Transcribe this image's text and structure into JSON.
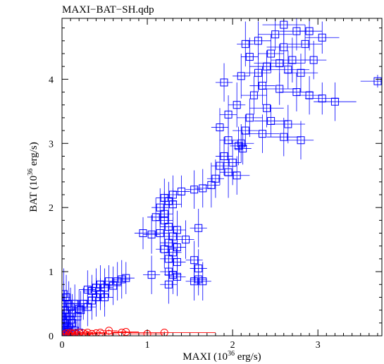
{
  "chart_data": {
    "type": "scatter",
    "title": "MAXI−BAT−SH.qdp",
    "xlabel": "MAXI (10^36 erg/s)",
    "ylabel": "BAT (10^36 erg/s)",
    "xlim": [
      0,
      3.75
    ],
    "ylim": [
      0,
      4.95
    ],
    "x_ticks": [
      0,
      1,
      2,
      3
    ],
    "y_ticks": [
      0,
      1,
      2,
      3,
      4
    ],
    "grid": false,
    "series": [
      {
        "marker": "square",
        "color": "#0000ff",
        "points": [
          [
            2.6,
            4.85,
            0.25,
            0.3
          ],
          [
            2.75,
            4.75,
            0.2,
            0.3
          ],
          [
            2.5,
            4.7,
            0.2,
            0.25
          ],
          [
            2.3,
            4.6,
            0.15,
            0.3
          ],
          [
            2.15,
            4.55,
            0.1,
            0.35
          ],
          [
            2.6,
            4.5,
            0.2,
            0.3
          ],
          [
            2.9,
            4.75,
            0.15,
            0.3
          ],
          [
            3.05,
            4.65,
            0.2,
            0.25
          ],
          [
            2.85,
            4.55,
            0.2,
            0.3
          ],
          [
            2.45,
            4.4,
            0.15,
            0.3
          ],
          [
            2.2,
            4.35,
            0.1,
            0.3
          ],
          [
            2.7,
            4.3,
            0.25,
            0.35
          ],
          [
            2.55,
            4.25,
            0.3,
            0.3
          ],
          [
            2.4,
            4.2,
            0.2,
            0.25
          ],
          [
            2.65,
            4.15,
            0.25,
            0.3
          ],
          [
            2.3,
            4.1,
            0.15,
            0.3
          ],
          [
            2.1,
            4.05,
            0.1,
            0.35
          ],
          [
            2.8,
            4.1,
            0.2,
            0.3
          ],
          [
            2.95,
            4.3,
            0.15,
            0.3
          ],
          [
            3.7,
            3.97,
            0.2,
            0.1
          ],
          [
            1.9,
            3.95,
            0.1,
            0.3
          ],
          [
            2.35,
            3.9,
            0.15,
            0.3
          ],
          [
            2.55,
            3.85,
            0.2,
            0.25
          ],
          [
            2.75,
            3.8,
            0.2,
            0.3
          ],
          [
            2.9,
            3.75,
            0.15,
            0.3
          ],
          [
            3.05,
            3.7,
            0.2,
            0.25
          ],
          [
            3.2,
            3.65,
            0.25,
            0.3
          ],
          [
            2.25,
            3.75,
            0.15,
            0.3
          ],
          [
            2.05,
            3.6,
            0.1,
            0.35
          ],
          [
            2.4,
            3.55,
            0.2,
            0.3
          ],
          [
            1.95,
            3.45,
            0.1,
            0.3
          ],
          [
            2.2,
            3.4,
            0.15,
            0.3
          ],
          [
            2.45,
            3.35,
            0.2,
            0.25
          ],
          [
            2.65,
            3.3,
            0.2,
            0.3
          ],
          [
            1.85,
            3.25,
            0.1,
            0.3
          ],
          [
            2.15,
            3.2,
            0.15,
            0.25
          ],
          [
            2.35,
            3.15,
            0.2,
            0.3
          ],
          [
            2.6,
            3.1,
            0.2,
            0.3
          ],
          [
            2.8,
            3.05,
            0.15,
            0.3
          ],
          [
            1.95,
            3.05,
            0.1,
            0.35
          ],
          [
            2.1,
            3.0,
            0.15,
            0.3
          ],
          [
            2.07,
            2.96,
            0.1,
            0.3
          ],
          [
            2.12,
            2.92,
            0.1,
            0.25
          ],
          [
            1.9,
            2.8,
            0.1,
            0.3
          ],
          [
            2.0,
            2.7,
            0.1,
            0.35
          ],
          [
            1.85,
            2.65,
            0.1,
            0.3
          ],
          [
            1.95,
            2.55,
            0.1,
            0.4
          ],
          [
            2.05,
            2.5,
            0.15,
            0.3
          ],
          [
            1.8,
            2.45,
            0.1,
            0.3
          ],
          [
            1.75,
            2.35,
            0.1,
            0.35
          ],
          [
            1.65,
            2.3,
            0.1,
            0.3
          ],
          [
            1.55,
            2.28,
            0.1,
            0.3
          ],
          [
            1.4,
            2.25,
            0.1,
            0.25
          ],
          [
            1.3,
            2.2,
            0.1,
            0.3
          ],
          [
            1.2,
            2.15,
            0.1,
            0.3
          ],
          [
            1.25,
            2.1,
            0.1,
            0.3
          ],
          [
            1.3,
            2.05,
            0.1,
            0.25
          ],
          [
            1.15,
            2.0,
            0.1,
            0.3
          ],
          [
            1.2,
            1.9,
            0.1,
            0.35
          ],
          [
            1.1,
            1.85,
            0.1,
            0.3
          ],
          [
            1.2,
            1.8,
            0.1,
            0.3
          ],
          [
            1.25,
            1.7,
            0.1,
            0.25
          ],
          [
            1.35,
            1.65,
            0.1,
            0.3
          ],
          [
            1.6,
            1.68,
            0.1,
            0.3
          ],
          [
            1.15,
            1.6,
            0.1,
            0.3
          ],
          [
            0.95,
            1.6,
            0.1,
            0.25
          ],
          [
            1.05,
            1.58,
            0.1,
            0.3
          ],
          [
            1.3,
            1.55,
            0.1,
            0.3
          ],
          [
            1.45,
            1.5,
            0.1,
            0.3
          ],
          [
            1.25,
            1.45,
            0.1,
            0.25
          ],
          [
            1.35,
            1.38,
            0.1,
            0.3
          ],
          [
            1.2,
            1.35,
            0.1,
            0.3
          ],
          [
            1.3,
            1.3,
            0.1,
            0.3
          ],
          [
            1.25,
            1.2,
            0.1,
            0.25
          ],
          [
            1.35,
            1.15,
            0.1,
            0.3
          ],
          [
            1.55,
            1.18,
            0.1,
            0.3
          ],
          [
            1.6,
            1.05,
            0.1,
            0.3
          ],
          [
            1.25,
            1.0,
            0.1,
            0.25
          ],
          [
            1.05,
            0.95,
            0.1,
            0.3
          ],
          [
            1.3,
            0.95,
            0.1,
            0.3
          ],
          [
            1.35,
            0.92,
            0.1,
            0.3
          ],
          [
            1.6,
            0.88,
            0.1,
            0.25
          ],
          [
            1.65,
            0.85,
            0.1,
            0.3
          ],
          [
            1.55,
            0.85,
            0.1,
            0.3
          ],
          [
            1.25,
            0.8,
            0.1,
            0.3
          ],
          [
            0.75,
            0.9,
            0.1,
            0.25
          ],
          [
            0.7,
            0.88,
            0.1,
            0.3
          ],
          [
            0.65,
            0.85,
            0.1,
            0.3
          ],
          [
            0.55,
            0.85,
            0.1,
            0.25
          ],
          [
            0.45,
            0.8,
            0.1,
            0.3
          ],
          [
            0.4,
            0.75,
            0.1,
            0.3
          ],
          [
            0.35,
            0.7,
            0.1,
            0.25
          ],
          [
            0.3,
            0.72,
            0.1,
            0.3
          ],
          [
            0.5,
            0.75,
            0.1,
            0.3
          ],
          [
            0.6,
            0.78,
            0.1,
            0.3
          ],
          [
            0.45,
            0.65,
            0.1,
            0.25
          ],
          [
            0.5,
            0.6,
            0.1,
            0.3
          ],
          [
            0.4,
            0.6,
            0.1,
            0.3
          ],
          [
            0.35,
            0.55,
            0.1,
            0.3
          ],
          [
            0.25,
            0.5,
            0.1,
            0.25
          ],
          [
            0.3,
            0.45,
            0.1,
            0.3
          ],
          [
            0.2,
            0.42,
            0.1,
            0.3
          ],
          [
            0.1,
            0.45,
            0.05,
            0.3
          ],
          [
            0.15,
            0.5,
            0.05,
            0.3
          ],
          [
            0.05,
            0.6,
            0.05,
            0.35
          ],
          [
            0.02,
            0.65,
            0.04,
            0.4
          ],
          [
            0.02,
            0.5,
            0.04,
            0.35
          ],
          [
            0.03,
            0.4,
            0.04,
            0.3
          ],
          [
            0.05,
            0.35,
            0.05,
            0.3
          ],
          [
            0.08,
            0.3,
            0.05,
            0.25
          ],
          [
            0.1,
            0.25,
            0.05,
            0.3
          ],
          [
            0.12,
            0.2,
            0.05,
            0.25
          ],
          [
            0.05,
            0.25,
            0.04,
            0.3
          ],
          [
            0.03,
            0.2,
            0.04,
            0.25
          ],
          [
            0.06,
            0.15,
            0.04,
            0.2
          ],
          [
            0.09,
            0.12,
            0.04,
            0.2
          ],
          [
            0.02,
            0.12,
            0.03,
            0.2
          ],
          [
            0.04,
            0.08,
            0.03,
            0.15
          ],
          [
            0.07,
            0.06,
            0.04,
            0.15
          ],
          [
            0.01,
            0.05,
            0.03,
            0.15
          ],
          [
            0.03,
            0.03,
            0.03,
            0.1
          ],
          [
            0.05,
            0.02,
            0.03,
            0.1
          ],
          [
            0.0,
            0.01,
            0.02,
            0.1
          ],
          [
            0.15,
            0.08,
            0.05,
            0.15
          ],
          [
            0.2,
            0.05,
            0.05,
            0.15
          ],
          [
            0.12,
            0.35,
            0.05,
            0.3
          ],
          [
            0.18,
            0.3,
            0.05,
            0.25
          ],
          [
            0.22,
            0.4,
            0.05,
            0.3
          ],
          [
            0.08,
            0.5,
            0.04,
            0.35
          ],
          [
            0.0,
            0.3,
            0.02,
            0.3
          ]
        ]
      },
      {
        "marker": "circle",
        "color": "#ff0000",
        "points": [
          [
            0.05,
            0.04,
            0.05,
            0.02
          ],
          [
            0.1,
            0.05,
            0.05,
            0.02
          ],
          [
            0.15,
            0.04,
            0.05,
            0.02
          ],
          [
            0.2,
            0.05,
            0.05,
            0.02
          ],
          [
            0.25,
            0.04,
            0.05,
            0.02
          ],
          [
            0.3,
            0.05,
            0.06,
            0.02
          ],
          [
            0.35,
            0.03,
            0.06,
            0.02
          ],
          [
            0.4,
            0.04,
            0.08,
            0.02
          ],
          [
            0.45,
            0.05,
            0.08,
            0.02
          ],
          [
            0.55,
            0.08,
            0.1,
            0.02
          ],
          [
            0.55,
            0.03,
            0.1,
            0.02
          ],
          [
            0.7,
            0.05,
            0.12,
            0.02
          ],
          [
            0.75,
            0.06,
            0.15,
            0.02
          ],
          [
            1.0,
            0.03,
            0.2,
            0.02
          ],
          [
            1.2,
            0.05,
            0.6,
            0.02
          ],
          [
            0.02,
            0.02,
            0.03,
            0.02
          ],
          [
            0.08,
            0.02,
            0.04,
            0.02
          ],
          [
            0.12,
            0.03,
            0.04,
            0.02
          ],
          [
            0.18,
            0.02,
            0.05,
            0.02
          ],
          [
            0.28,
            0.02,
            0.05,
            0.02
          ]
        ]
      }
    ]
  }
}
